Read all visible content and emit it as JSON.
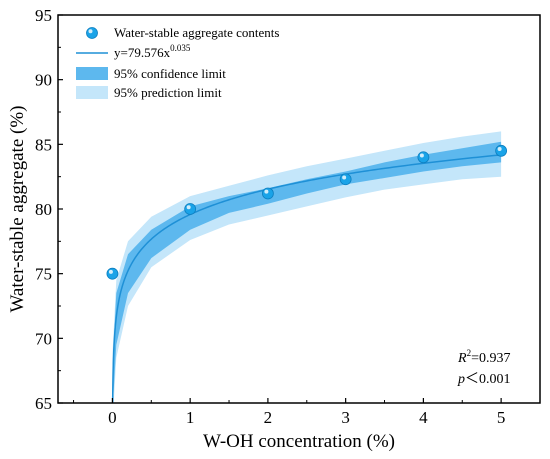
{
  "chart_data": {
    "type": "scatter",
    "xlabel": "W-OH concentration (%)",
    "ylabel": "Water-stable aggregate (%)",
    "xlim": [
      -0.7,
      5.5
    ],
    "ylim": [
      65,
      95
    ],
    "x_ticks": [
      "0",
      "1",
      "2",
      "3",
      "4",
      "5"
    ],
    "y_ticks": [
      "65",
      "70",
      "75",
      "80",
      "85",
      "90",
      "95"
    ],
    "grid": false,
    "legend_position": "top-left",
    "series": [
      {
        "name": "Water-stable aggregate  contents",
        "kind": "points",
        "color": "#1aa3e8",
        "x": [
          0,
          1,
          2,
          3,
          4,
          5
        ],
        "y": [
          75.0,
          80.0,
          81.2,
          82.3,
          84.0,
          84.5
        ]
      },
      {
        "name": "y=79.576x",
        "name_superscript": "0.035",
        "kind": "fit",
        "color": "#1e90d6",
        "a": 79.576,
        "b": 0.035,
        "x_start": 0.002,
        "x_end": 5
      },
      {
        "name": "95% confidence limit",
        "kind": "band",
        "color": "#5db8ee",
        "x": [
          0.002,
          0.05,
          0.2,
          0.5,
          1,
          1.5,
          2,
          2.5,
          3,
          3.5,
          4,
          4.5,
          5
        ],
        "lower": [
          64.5,
          69.5,
          73.5,
          76.2,
          78.4,
          79.7,
          80.4,
          81.2,
          81.9,
          82.4,
          82.9,
          83.3,
          83.6
        ],
        "upper": [
          68.0,
          73.5,
          76.5,
          78.4,
          80.2,
          81.0,
          81.6,
          82.3,
          82.9,
          83.6,
          84.2,
          84.7,
          85.2
        ]
      },
      {
        "name": "95% prediction limit",
        "kind": "band",
        "color": "#c4e6fa",
        "x": [
          0.002,
          0.05,
          0.2,
          0.5,
          1,
          1.5,
          2,
          2.5,
          3,
          3.5,
          4,
          4.5,
          5
        ],
        "lower": [
          63.5,
          68.5,
          72.5,
          75.5,
          77.6,
          78.8,
          79.5,
          80.2,
          80.9,
          81.5,
          81.9,
          82.3,
          82.5
        ],
        "upper": [
          69.0,
          74.5,
          77.5,
          79.4,
          81.0,
          81.8,
          82.6,
          83.3,
          83.9,
          84.5,
          85.1,
          85.6,
          86.0
        ]
      }
    ],
    "annotations": {
      "r2_symbol": "R",
      "r2_exp": "2",
      "r2_value": "=0.937",
      "p_symbol": "p",
      "p_value": "＜0.001"
    }
  }
}
